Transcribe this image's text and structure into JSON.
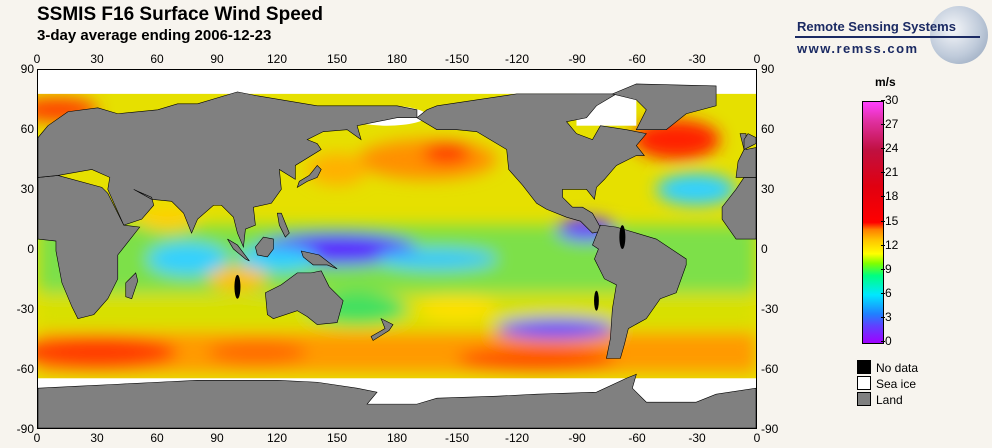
{
  "header": {
    "title": "SSMIS F16 Surface Wind Speed",
    "subtitle": "3-day average ending 2006-12-23"
  },
  "logo": {
    "name": "Remote Sensing Systems",
    "url": "www.remss.com"
  },
  "axes": {
    "lon_labels": [
      "0",
      "30",
      "60",
      "90",
      "120",
      "150",
      "180",
      "-150",
      "-120",
      "-90",
      "-60",
      "-30",
      "0"
    ],
    "lat_labels": [
      "90",
      "60",
      "30",
      "0",
      "-30",
      "-60",
      "-90"
    ]
  },
  "colorbar": {
    "unit": "m/s",
    "ticks": [
      "30",
      "27",
      "24",
      "21",
      "18",
      "15",
      "12",
      "9",
      "6",
      "3",
      "0"
    ],
    "range": [
      0,
      30
    ]
  },
  "legend": [
    {
      "label": "No data",
      "color": "#000000"
    },
    {
      "label": "Sea ice",
      "color": "#ffffff"
    },
    {
      "label": "Land",
      "color": "#808080"
    }
  ],
  "colors": {
    "land": "#808080",
    "ice": "#ffffff",
    "no_data": "#000000"
  }
}
